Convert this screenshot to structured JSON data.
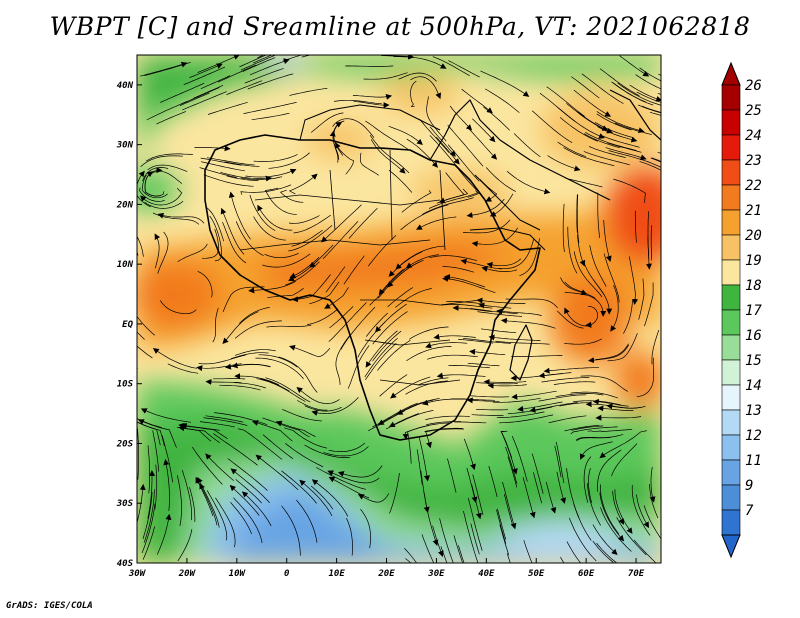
{
  "title": "WBPT [C] and Sreamline at 500hPa, VT: 2021062818",
  "credit": "GrADS: IGES/COLA",
  "map": {
    "lon_range": [
      -30,
      75
    ],
    "lat_range": [
      -40,
      45
    ],
    "lon_ticks": [
      {
        "value": -30,
        "label": "30W"
      },
      {
        "value": -20,
        "label": "20W"
      },
      {
        "value": -10,
        "label": "10W"
      },
      {
        "value": 0,
        "label": "0"
      },
      {
        "value": 10,
        "label": "10E"
      },
      {
        "value": 20,
        "label": "20E"
      },
      {
        "value": 30,
        "label": "30E"
      },
      {
        "value": 40,
        "label": "40E"
      },
      {
        "value": 50,
        "label": "50E"
      },
      {
        "value": 60,
        "label": "60E"
      },
      {
        "value": 70,
        "label": "70E"
      }
    ],
    "lat_ticks": [
      {
        "value": 40,
        "label": "40N"
      },
      {
        "value": 30,
        "label": "30N"
      },
      {
        "value": 20,
        "label": "20N"
      },
      {
        "value": 10,
        "label": "10N"
      },
      {
        "value": 0,
        "label": "EQ"
      },
      {
        "value": -10,
        "label": "10S"
      },
      {
        "value": -20,
        "label": "20S"
      },
      {
        "value": -30,
        "label": "30S"
      },
      {
        "value": -40,
        "label": "40S"
      }
    ]
  },
  "colorbar": {
    "levels": [
      {
        "label": "26",
        "color": "#a50000"
      },
      {
        "label": "25",
        "color": "#c80000"
      },
      {
        "label": "24",
        "color": "#e41b0b"
      },
      {
        "label": "23",
        "color": "#f04e16"
      },
      {
        "label": "22",
        "color": "#f27a1f"
      },
      {
        "label": "21",
        "color": "#f5a12f"
      },
      {
        "label": "20",
        "color": "#f7c265"
      },
      {
        "label": "19",
        "color": "#fbe6a0"
      },
      {
        "label": "18",
        "color": "#3fb43f"
      },
      {
        "label": "17",
        "color": "#5cc85c"
      },
      {
        "label": "16",
        "color": "#98dd98"
      },
      {
        "label": "15",
        "color": "#d2f2d8"
      },
      {
        "label": "14",
        "color": "#e6f4fc"
      },
      {
        "label": "13",
        "color": "#b4d9f4"
      },
      {
        "label": "12",
        "color": "#8cc0ee"
      },
      {
        "label": "11",
        "color": "#68a4e4"
      },
      {
        "label": "9",
        "color": "#4c8ed8"
      },
      {
        "label": "7",
        "color": "#2f74d0"
      }
    ],
    "top_color": "#a50000",
    "bottom_color": "#2266cc"
  }
}
